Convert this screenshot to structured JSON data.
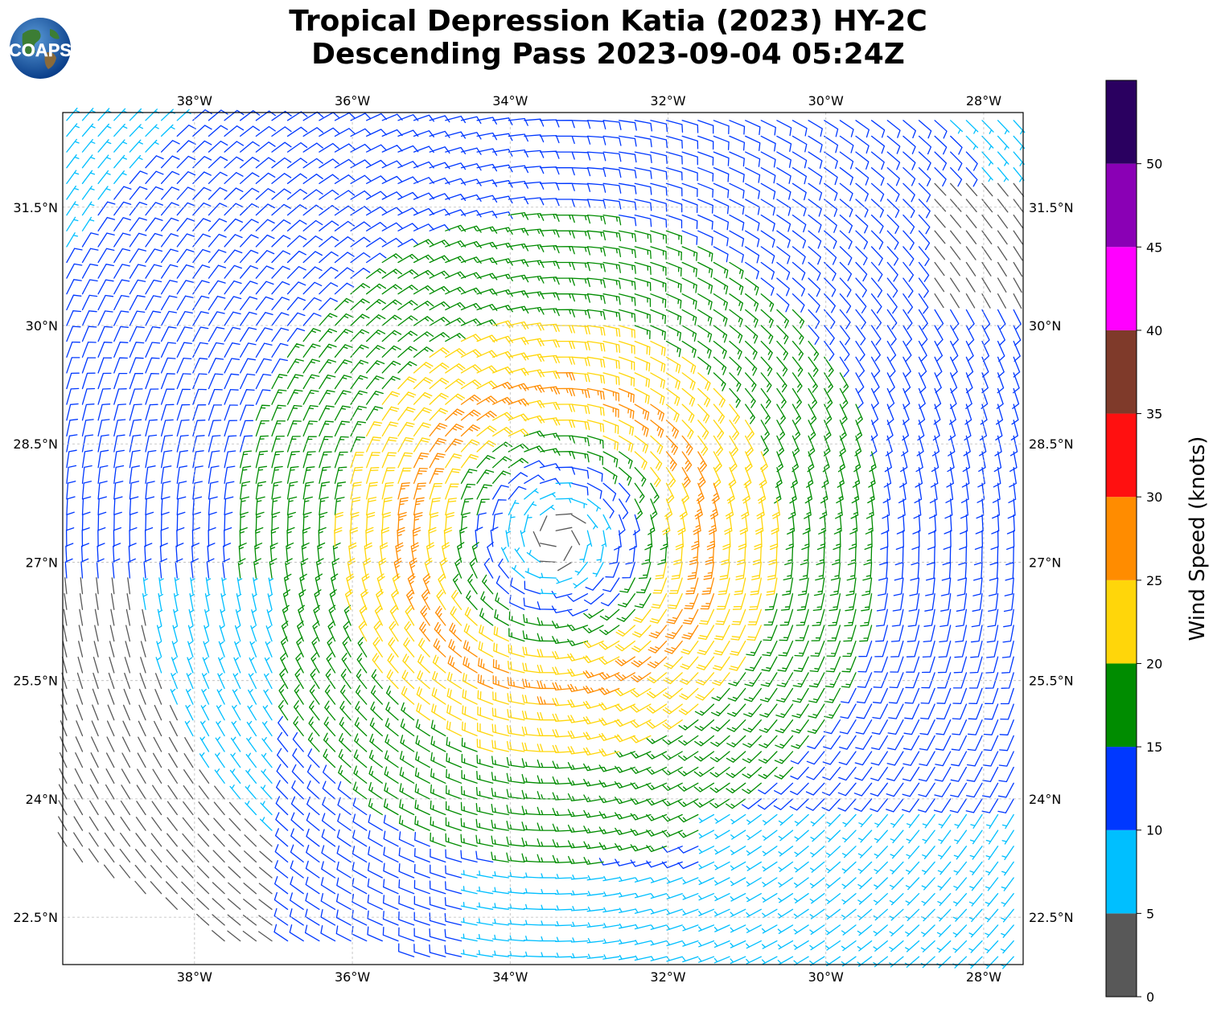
{
  "title": {
    "line1": "Tropical Depression Katia (2023) HY-2C",
    "line2": "Descending Pass 2023-09-04 05:24Z"
  },
  "logo": {
    "text": "COAPS"
  },
  "map": {
    "lon_range": [
      -39.67,
      -27.5
    ],
    "lat_range": [
      21.9,
      32.7
    ],
    "lon_ticks": [
      {
        "value": -38,
        "label": "38°W"
      },
      {
        "value": -36,
        "label": "36°W"
      },
      {
        "value": -34,
        "label": "34°W"
      },
      {
        "value": -32,
        "label": "32°W"
      },
      {
        "value": -30,
        "label": "30°W"
      },
      {
        "value": -28,
        "label": "28°W"
      }
    ],
    "lat_ticks": [
      {
        "value": 31.5,
        "label": "31.5°N"
      },
      {
        "value": 30,
        "label": "30°N"
      },
      {
        "value": 28.5,
        "label": "28.5°N"
      },
      {
        "value": 27,
        "label": "27°N"
      },
      {
        "value": 25.5,
        "label": "25.5°N"
      },
      {
        "value": 24,
        "label": "24°N"
      },
      {
        "value": 22.5,
        "label": "22.5°N"
      }
    ],
    "gridlines": true,
    "storm_center": {
      "lon": -33.4,
      "lat": 27.3
    },
    "wind_field": {
      "description": "circulation",
      "barb_spacing_deg": 0.2
    }
  },
  "colorbar": {
    "label": "Wind Speed (knots)",
    "min": 0,
    "max": 55,
    "bins": [
      {
        "from": 0,
        "to": 5,
        "color": "#585858"
      },
      {
        "from": 5,
        "to": 10,
        "color": "#00bfff"
      },
      {
        "from": 10,
        "to": 15,
        "color": "#0038ff"
      },
      {
        "from": 15,
        "to": 20,
        "color": "#008c00"
      },
      {
        "from": 20,
        "to": 25,
        "color": "#ffd60a"
      },
      {
        "from": 25,
        "to": 30,
        "color": "#ff8c00"
      },
      {
        "from": 30,
        "to": 35,
        "color": "#ff1010"
      },
      {
        "from": 35,
        "to": 40,
        "color": "#7f3a2a"
      },
      {
        "from": 40,
        "to": 45,
        "color": "#ff00ff"
      },
      {
        "from": 45,
        "to": 50,
        "color": "#8a00b5"
      },
      {
        "from": 50,
        "to": 55,
        "color": "#2a0060"
      }
    ],
    "ticks": [
      0,
      5,
      10,
      15,
      20,
      25,
      30,
      35,
      40,
      45,
      50
    ]
  }
}
